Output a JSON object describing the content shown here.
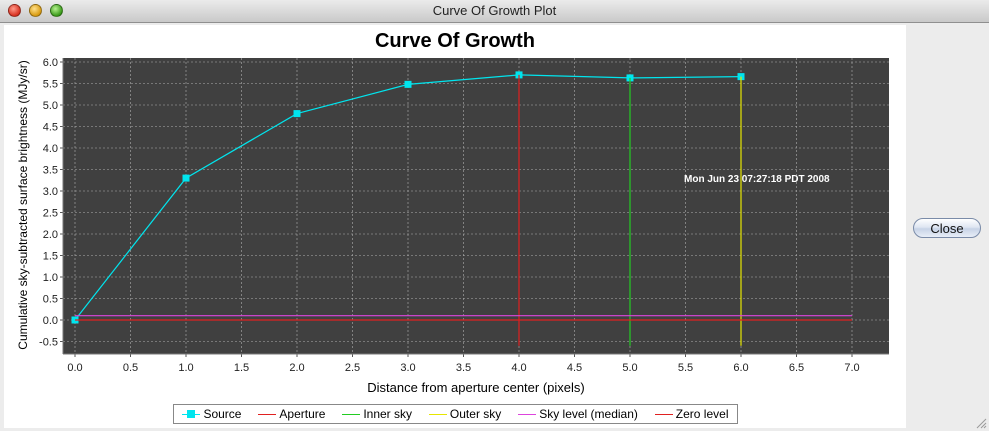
{
  "window": {
    "title": "Curve Of Growth Plot"
  },
  "sidebar": {
    "close_label": "Close"
  },
  "chart_data": {
    "type": "line",
    "title": "Curve Of Growth",
    "xlabel": "Distance from aperture center (pixels)",
    "ylabel": "Cumulative sky-subtracted surface brightness (MJy/sr)",
    "xlim": [
      0.0,
      7.0
    ],
    "ylim": [
      -0.6,
      6.0
    ],
    "xticks": [
      "0.0",
      "0.5",
      "1.0",
      "1.5",
      "2.0",
      "2.5",
      "3.0",
      "3.5",
      "4.0",
      "4.5",
      "5.0",
      "5.5",
      "6.0",
      "6.5",
      "7.0"
    ],
    "yticks": [
      "-0.5",
      "0.0",
      "0.5",
      "1.0",
      "1.5",
      "2.0",
      "2.5",
      "3.0",
      "3.5",
      "4.0",
      "4.5",
      "5.0",
      "5.5",
      "6.0"
    ],
    "grid": true,
    "legend_position": "bottom",
    "annotation": "Mon Jun 23 07:27:18 PDT 2008",
    "series": [
      {
        "name": "Source",
        "color": "#00e5ee",
        "x": [
          0.0,
          1.0,
          2.0,
          3.0,
          4.0,
          5.0,
          6.0
        ],
        "y": [
          0.0,
          3.3,
          4.8,
          5.48,
          5.7,
          5.63,
          5.66
        ]
      },
      {
        "name": "Aperture",
        "color": "#e02020",
        "vertical_at": 4.0,
        "y_range": [
          -0.6,
          5.7
        ]
      },
      {
        "name": "Inner sky",
        "color": "#22cc22",
        "vertical_at": 5.0,
        "y_range": [
          -0.6,
          5.63
        ]
      },
      {
        "name": "Outer sky",
        "color": "#e6e600",
        "vertical_at": 6.0,
        "y_range": [
          -0.6,
          5.66
        ]
      },
      {
        "name": "Sky level (median)",
        "color": "#dd44dd",
        "horizontal_at": 0.1,
        "x_range": [
          0.0,
          7.0
        ]
      },
      {
        "name": "Zero level",
        "color": "#e02020",
        "horizontal_at": 0.0,
        "x_range": [
          0.0,
          7.0
        ]
      }
    ]
  }
}
